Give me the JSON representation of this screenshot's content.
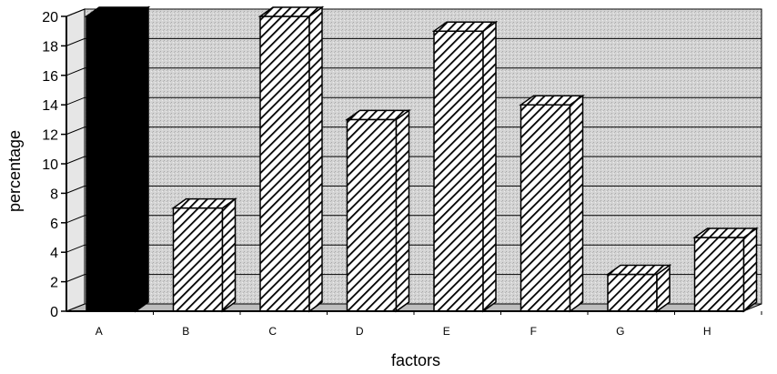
{
  "chart_data": {
    "type": "bar",
    "style": "3d",
    "categories": [
      "A",
      "B",
      "C",
      "D",
      "E",
      "F",
      "G",
      "H"
    ],
    "values": [
      20,
      7,
      20,
      13,
      19,
      14,
      2.5,
      5
    ],
    "xlabel": "factors",
    "ylabel": "percentage",
    "ylim": [
      0,
      20
    ],
    "yticks": [
      0,
      2,
      4,
      6,
      8,
      10,
      12,
      14,
      16,
      18,
      20
    ],
    "grid": true,
    "legend": "none",
    "colors": {
      "first_bar": "#000000",
      "other_bars": "hatched",
      "background": "#d8d8d8"
    }
  }
}
